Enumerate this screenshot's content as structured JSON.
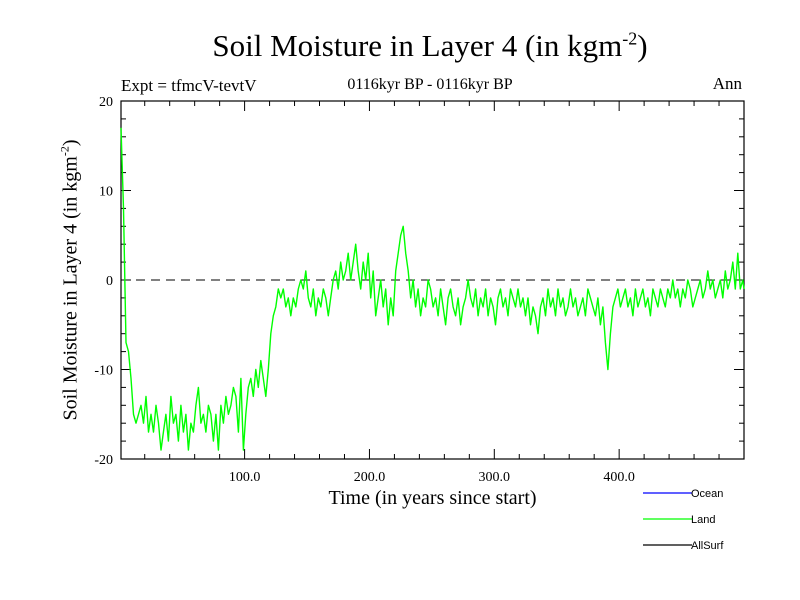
{
  "header": {
    "title": "Soil Moisture in Layer 4 (in kgm",
    "title_sup": "-2",
    "title_close": ")",
    "subtitle": "0116kyr BP - 0116kyr BP",
    "expt": "Expt = tfmcV-tevtV",
    "season": "Ann"
  },
  "axes": {
    "ylabel": "Soil Moisture in Layer 4 (in kgm",
    "ylabel_sup": "-2",
    "ylabel_close": ")",
    "xlabel": "Time (in years since start)"
  },
  "colors": {
    "ocean": "#0000ff",
    "land": "#00ff00",
    "allsurf": "#000000"
  },
  "chart_data": {
    "type": "line",
    "xlim": [
      1,
      500
    ],
    "ylim": [
      -20,
      20
    ],
    "xticks": [
      100,
      200,
      300,
      400
    ],
    "xtick_labels": [
      "100.0",
      "200.0",
      "300.0",
      "400.0"
    ],
    "yticks": [
      -20,
      -10,
      0,
      10,
      20
    ],
    "ytick_labels": [
      "-20",
      "-10",
      "0",
      "10",
      "20"
    ],
    "zero_line": "dashed",
    "legend_position": "bottom-right",
    "series": [
      {
        "name": "Ocean",
        "color": "#0000ff",
        "points": []
      },
      {
        "name": "Land",
        "color": "#00ff00",
        "points": [
          [
            1,
            17
          ],
          [
            3,
            8
          ],
          [
            5,
            -7
          ],
          [
            7,
            -8
          ],
          [
            9,
            -11
          ],
          [
            11,
            -15
          ],
          [
            13,
            -16
          ],
          [
            15,
            -15
          ],
          [
            17,
            -14
          ],
          [
            19,
            -16
          ],
          [
            21,
            -13
          ],
          [
            23,
            -17
          ],
          [
            25,
            -15
          ],
          [
            27,
            -17
          ],
          [
            29,
            -14
          ],
          [
            31,
            -16
          ],
          [
            33,
            -19
          ],
          [
            35,
            -17
          ],
          [
            37,
            -15
          ],
          [
            39,
            -18
          ],
          [
            41,
            -13
          ],
          [
            43,
            -16
          ],
          [
            45,
            -15
          ],
          [
            47,
            -18
          ],
          [
            49,
            -14
          ],
          [
            51,
            -17
          ],
          [
            53,
            -15
          ],
          [
            55,
            -19
          ],
          [
            57,
            -16
          ],
          [
            59,
            -17
          ],
          [
            61,
            -14
          ],
          [
            63,
            -12
          ],
          [
            65,
            -16
          ],
          [
            67,
            -15
          ],
          [
            69,
            -17
          ],
          [
            71,
            -14
          ],
          [
            73,
            -15
          ],
          [
            75,
            -18
          ],
          [
            77,
            -15
          ],
          [
            79,
            -19
          ],
          [
            81,
            -14
          ],
          [
            83,
            -16
          ],
          [
            85,
            -13
          ],
          [
            87,
            -15
          ],
          [
            89,
            -14
          ],
          [
            91,
            -12
          ],
          [
            93,
            -13
          ],
          [
            95,
            -17
          ],
          [
            97,
            -11
          ],
          [
            99,
            -19
          ],
          [
            101,
            -15
          ],
          [
            103,
            -12
          ],
          [
            105,
            -11
          ],
          [
            107,
            -13
          ],
          [
            109,
            -10
          ],
          [
            111,
            -12
          ],
          [
            113,
            -9
          ],
          [
            115,
            -11
          ],
          [
            117,
            -13
          ],
          [
            119,
            -10
          ],
          [
            121,
            -6
          ],
          [
            123,
            -4
          ],
          [
            125,
            -3
          ],
          [
            127,
            -1
          ],
          [
            129,
            -2
          ],
          [
            131,
            -1
          ],
          [
            133,
            -3
          ],
          [
            135,
            -2
          ],
          [
            137,
            -4
          ],
          [
            139,
            -2
          ],
          [
            141,
            -3
          ],
          [
            143,
            -1
          ],
          [
            145,
            0
          ],
          [
            147,
            -1
          ],
          [
            149,
            1
          ],
          [
            151,
            -2
          ],
          [
            153,
            -3
          ],
          [
            155,
            -1
          ],
          [
            157,
            -4
          ],
          [
            159,
            -2
          ],
          [
            161,
            -3
          ],
          [
            163,
            -1
          ],
          [
            165,
            -2
          ],
          [
            167,
            -4
          ],
          [
            169,
            -2
          ],
          [
            171,
            0
          ],
          [
            173,
            1
          ],
          [
            175,
            -1
          ],
          [
            177,
            2
          ],
          [
            179,
            0
          ],
          [
            181,
            1
          ],
          [
            183,
            3
          ],
          [
            185,
            0
          ],
          [
            187,
            2
          ],
          [
            189,
            4
          ],
          [
            191,
            1
          ],
          [
            193,
            -1
          ],
          [
            195,
            2
          ],
          [
            197,
            0
          ],
          [
            199,
            3
          ],
          [
            201,
            -2
          ],
          [
            203,
            1
          ],
          [
            205,
            -4
          ],
          [
            207,
            -2
          ],
          [
            209,
            0
          ],
          [
            211,
            -3
          ],
          [
            213,
            -1
          ],
          [
            215,
            -5
          ],
          [
            217,
            -2
          ],
          [
            219,
            -4
          ],
          [
            221,
            1
          ],
          [
            223,
            3
          ],
          [
            225,
            5
          ],
          [
            227,
            6
          ],
          [
            229,
            3
          ],
          [
            231,
            1
          ],
          [
            233,
            -2
          ],
          [
            235,
            0
          ],
          [
            237,
            -3
          ],
          [
            239,
            -1
          ],
          [
            241,
            -4
          ],
          [
            243,
            -2
          ],
          [
            245,
            -3
          ],
          [
            247,
            0
          ],
          [
            249,
            -1
          ],
          [
            251,
            -3
          ],
          [
            253,
            -2
          ],
          [
            255,
            -4
          ],
          [
            257,
            -1
          ],
          [
            259,
            -3
          ],
          [
            261,
            -5
          ],
          [
            263,
            -2
          ],
          [
            265,
            -1
          ],
          [
            267,
            -3
          ],
          [
            269,
            -4
          ],
          [
            271,
            -2
          ],
          [
            273,
            -5
          ],
          [
            275,
            -3
          ],
          [
            277,
            -2
          ],
          [
            279,
            0
          ],
          [
            281,
            -2
          ],
          [
            283,
            -3
          ],
          [
            285,
            -1
          ],
          [
            287,
            -4
          ],
          [
            289,
            -2
          ],
          [
            291,
            -3
          ],
          [
            293,
            -1
          ],
          [
            295,
            -4
          ],
          [
            297,
            -2
          ],
          [
            299,
            -3
          ],
          [
            301,
            -5
          ],
          [
            303,
            -2
          ],
          [
            305,
            -1
          ],
          [
            307,
            -3
          ],
          [
            309,
            -2
          ],
          [
            311,
            -4
          ],
          [
            313,
            -1
          ],
          [
            315,
            -2
          ],
          [
            317,
            -3
          ],
          [
            319,
            -1
          ],
          [
            321,
            -3
          ],
          [
            323,
            -2
          ],
          [
            325,
            -4
          ],
          [
            327,
            -2
          ],
          [
            329,
            -5
          ],
          [
            331,
            -3
          ],
          [
            333,
            -4
          ],
          [
            335,
            -6
          ],
          [
            337,
            -3
          ],
          [
            339,
            -2
          ],
          [
            341,
            -4
          ],
          [
            343,
            -1
          ],
          [
            345,
            -3
          ],
          [
            347,
            -2
          ],
          [
            349,
            -4
          ],
          [
            351,
            -1
          ],
          [
            353,
            -3
          ],
          [
            355,
            -2
          ],
          [
            357,
            -4
          ],
          [
            359,
            -3
          ],
          [
            361,
            -1
          ],
          [
            363,
            -3
          ],
          [
            365,
            -2
          ],
          [
            367,
            -4
          ],
          [
            369,
            -3
          ],
          [
            371,
            -2
          ],
          [
            373,
            -4
          ],
          [
            375,
            -1
          ],
          [
            377,
            -2
          ],
          [
            379,
            -3
          ],
          [
            381,
            -4
          ],
          [
            383,
            -2
          ],
          [
            385,
            -5
          ],
          [
            387,
            -3
          ],
          [
            389,
            -7
          ],
          [
            391,
            -10
          ],
          [
            393,
            -6
          ],
          [
            395,
            -3
          ],
          [
            397,
            -2
          ],
          [
            399,
            -1
          ],
          [
            401,
            -3
          ],
          [
            403,
            -2
          ],
          [
            405,
            -1
          ],
          [
            407,
            -3
          ],
          [
            409,
            -2
          ],
          [
            411,
            -4
          ],
          [
            413,
            -1
          ],
          [
            415,
            -3
          ],
          [
            417,
            -2
          ],
          [
            419,
            -1
          ],
          [
            421,
            -3
          ],
          [
            423,
            -2
          ],
          [
            425,
            -4
          ],
          [
            427,
            -1
          ],
          [
            429,
            -2
          ],
          [
            431,
            -3
          ],
          [
            433,
            -1
          ],
          [
            435,
            -2
          ],
          [
            437,
            -3
          ],
          [
            439,
            -1
          ],
          [
            441,
            -2
          ],
          [
            443,
            0
          ],
          [
            445,
            -2
          ],
          [
            447,
            -1
          ],
          [
            449,
            -3
          ],
          [
            451,
            -1
          ],
          [
            453,
            -2
          ],
          [
            455,
            0
          ],
          [
            457,
            -1
          ],
          [
            459,
            -3
          ],
          [
            461,
            -2
          ],
          [
            463,
            -1
          ],
          [
            465,
            0
          ],
          [
            467,
            -2
          ],
          [
            469,
            -1
          ],
          [
            471,
            1
          ],
          [
            473,
            -1
          ],
          [
            475,
            0
          ],
          [
            477,
            -2
          ],
          [
            479,
            -1
          ],
          [
            481,
            0
          ],
          [
            483,
            -2
          ],
          [
            485,
            1
          ],
          [
            487,
            -1
          ],
          [
            489,
            0
          ],
          [
            491,
            2
          ],
          [
            493,
            -1
          ],
          [
            495,
            3
          ],
          [
            497,
            -1
          ],
          [
            499,
            0
          ],
          [
            500,
            -1
          ]
        ]
      },
      {
        "name": "AllSurf",
        "color": "#000000",
        "points": []
      }
    ]
  }
}
